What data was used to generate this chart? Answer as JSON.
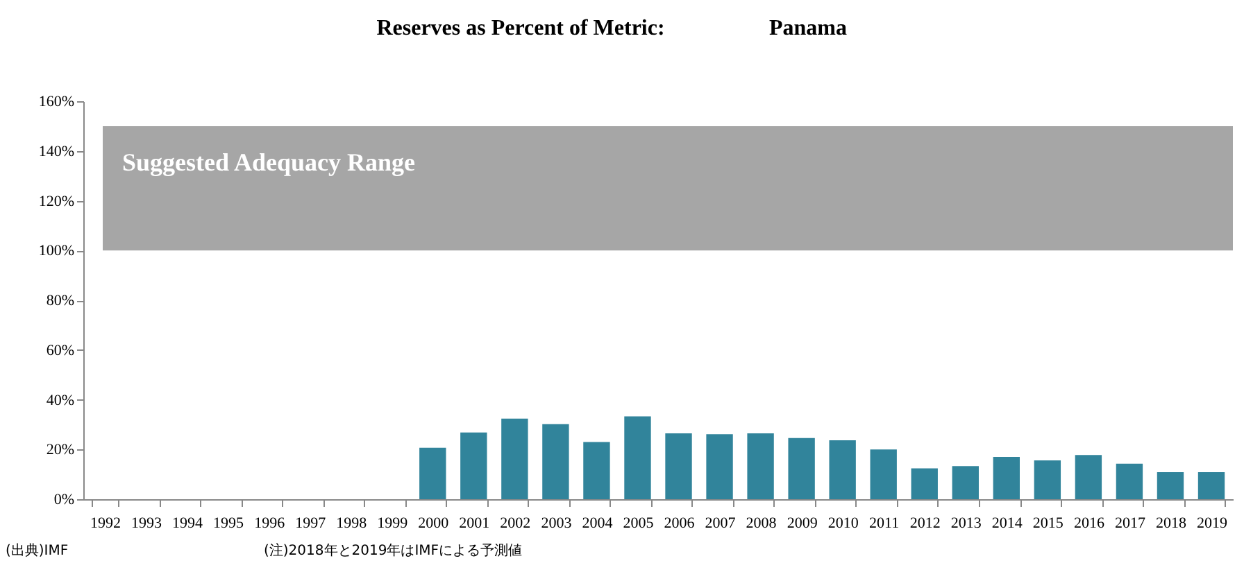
{
  "chart_data": {
    "type": "bar",
    "title": "Reserves as Percent of Metric:",
    "subtitle": "Panama",
    "categories": [
      "1992",
      "1993",
      "1994",
      "1995",
      "1996",
      "1997",
      "1998",
      "1999",
      "2000",
      "2001",
      "2002",
      "2003",
      "2004",
      "2005",
      "2006",
      "2007",
      "2008",
      "2009",
      "2010",
      "2011",
      "2012",
      "2013",
      "2014",
      "2015",
      "2016",
      "2017",
      "2018",
      "2019"
    ],
    "values": [
      null,
      null,
      null,
      null,
      null,
      null,
      null,
      null,
      20.7,
      26.8,
      32.4,
      30.2,
      23,
      33.3,
      26.5,
      26.1,
      26.5,
      24.6,
      23.7,
      20,
      12.4,
      13.3,
      17,
      15.6,
      17.8,
      14.3,
      10.9,
      10.9
    ],
    "color": "#31849b",
    "ylim": [
      0,
      160
    ],
    "yticks": [
      {
        "value": 0,
        "label": "0%"
      },
      {
        "value": 20,
        "label": "20%"
      },
      {
        "value": 40,
        "label": "40%"
      },
      {
        "value": 60,
        "label": "60%"
      },
      {
        "value": 80,
        "label": "80%"
      },
      {
        "value": 100,
        "label": "100%"
      },
      {
        "value": 120,
        "label": "120%"
      },
      {
        "value": 140,
        "label": "140%"
      },
      {
        "value": 160,
        "label": "160%"
      }
    ],
    "bands": [
      {
        "axis": "y",
        "from": 100,
        "to": 150,
        "label": "Suggested Adequacy Range",
        "color": "#a6a6a6"
      }
    ],
    "annotations": [
      "(出典)IMF",
      "(注)2018年と2019年はIMFによる予測値"
    ],
    "grid": false
  }
}
